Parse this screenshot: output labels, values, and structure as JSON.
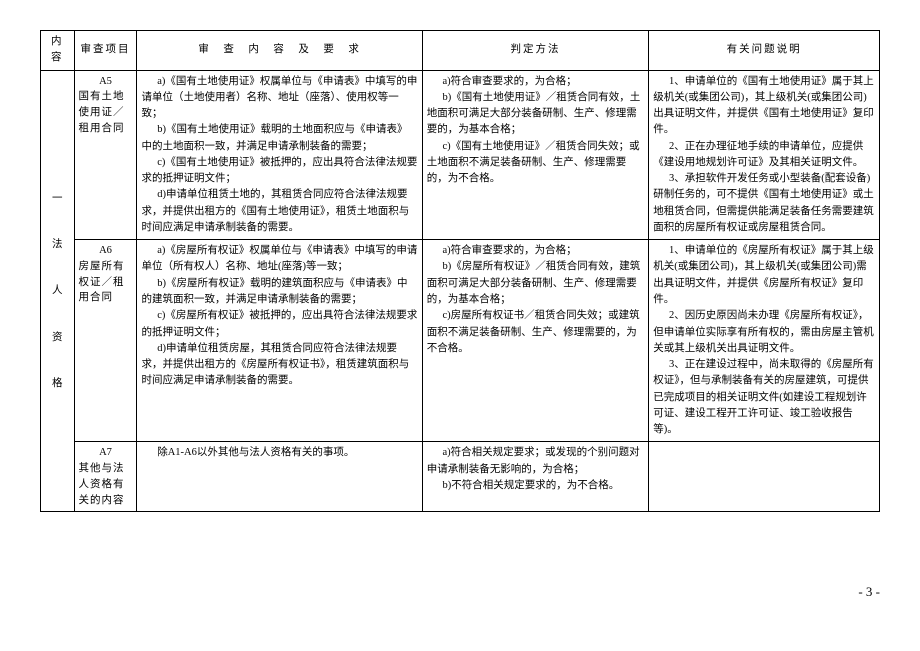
{
  "headers": {
    "c1": "内容",
    "c2": "审查项目",
    "c3": "审　查　内　容　及　要　求",
    "c4": "判定方法",
    "c5": "有关问题说明"
  },
  "section": {
    "num": "一",
    "title": "法　人　资　格"
  },
  "rows": [
    {
      "code": "A5",
      "item": "国有土地使用证／租用合同",
      "content": "a)《国有土地使用证》权属单位与《申请表》中填写的申请单位（土地使用者）名称、地址（座落）、使用权等一致；\nb)《国有土地使用证》载明的土地面积应与《申请表》中的土地面积一致，并满足申请承制装备的需要；\nc)《国有土地使用证》被抵押的，应出具符合法律法规要求的抵押证明文件；\nd)申请单位租赁土地的，其租赁合同应符合法律法规要求，并提供出租方的《国有土地使用证》，租赁土地面积与时间应满足申请承制装备的需要。",
      "judge": "a)符合审查要求的，为合格；\nb)《国有土地使用证》／租赁合同有效，土地面积可满足大部分装备研制、生产、修理需要的，为基本合格；\nc)《国有土地使用证》／租赁合同失效；或土地面积不满足装备研制、生产、修理需要的，为不合格。",
      "remark": "1、申请单位的《国有土地使用证》属于其上级机关(或集团公司)，其上级机关(或集团公司)出具证明文件，并提供《国有土地使用证》复印件。\n2、正在办理征地手续的申请单位，应提供《建设用地规划许可证》及其相关证明文件。\n3、承担软件开发任务或小型装备(配套设备)研制任务的，可不提供《国有土地使用证》或土地租赁合同，但需提供能满足装备任务需要建筑面积的房屋所有权证或房屋租赁合同。"
    },
    {
      "code": "A6",
      "item": "房屋所有权证／租用合同",
      "content": "a)《房屋所有权证》权属单位与《申请表》中填写的申请单位（所有权人）名称、地址(座落)等一致；\nb)《房屋所有权证》载明的建筑面积应与《申请表》中的建筑面积一致，并满足申请承制装备的需要；\nc)《房屋所有权证》被抵押的，应出具符合法律法规要求的抵押证明文件；\nd)申请单位租赁房屋，其租赁合同应符合法律法规要求，并提供出租方的《房屋所有权证书》，租赁建筑面积与时间应满足申请承制装备的需要。",
      "judge": "a)符合审查要求的，为合格；\nb)《房屋所有权证》／租赁合同有效，建筑面积可满足大部分装备研制、生产、修理需要的，为基本合格；\nc)房屋所有权证书／租赁合同失效；或建筑面积不满足装备研制、生产、修理需要的，为不合格。",
      "remark": "1、申请单位的《房屋所有权证》属于其上级机关(或集团公司)，其上级机关(或集团公司)需出具证明文件，并提供《房屋所有权证》复印件。\n2、因历史原因尚未办理《房屋所有权证》，但申请单位实际享有所有权的，需由房屋主管机关或其上级机关出具证明文件。\n3、正在建设过程中，尚未取得的《房屋所有权证》，但与承制装备有关的房屋建筑，可提供已完成项目的相关证明文件(如建设工程规划许可证、建设工程开工许可证、竣工验收报告等)。"
    },
    {
      "code": "A7",
      "item": "其他与法人资格有关的内容",
      "content": "除A1-A6以外其他与法人资格有关的事项。",
      "judge": "a)符合相关规定要求；或发现的个别问题对申请承制装备无影响的，为合格；\nb)不符合相关规定要求的，为不合格。",
      "remark": ""
    }
  ],
  "pageNumber": "- 3 -",
  "colWidths": [
    "4%",
    "7.5%",
    "34%",
    "27%",
    "27.5%"
  ]
}
